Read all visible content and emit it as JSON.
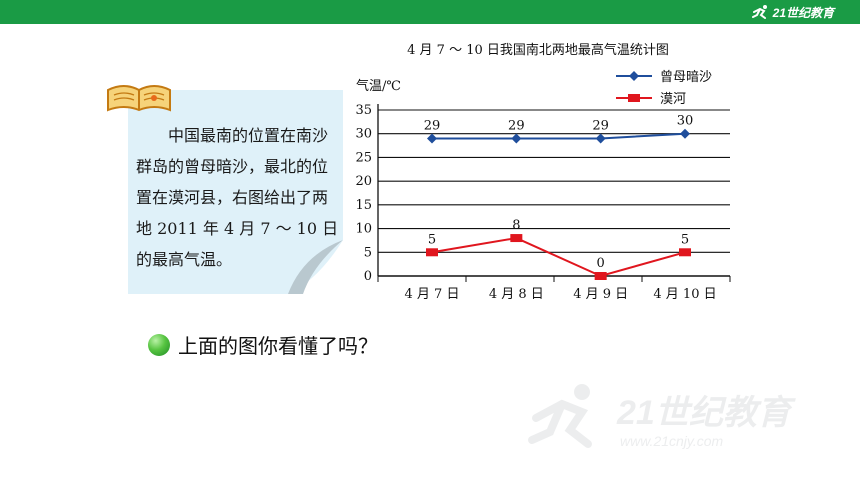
{
  "header": {
    "logo_text": "21世纪教育",
    "bar_color": "#1a9b45"
  },
  "note": {
    "text": "中国最南的位置在南沙群岛的曾母暗沙，最北的位置在漠河县，右图给出了两地 2011 年 4 月 7 ～ 10 日的最高气温。"
  },
  "question": {
    "text": "上面的图你看懂了吗？"
  },
  "chart_data": {
    "type": "line",
    "title": "4 月 7 ～ 10 日我国南北两地最高气温统计图",
    "ylabel": "气温/℃",
    "xlabel": "",
    "categories": [
      "4 月 7 日",
      "4 月 8 日",
      "4 月 9 日",
      "4 月 10 日"
    ],
    "ylim": [
      0,
      35
    ],
    "yticks": [
      0,
      5,
      10,
      15,
      20,
      25,
      30,
      35
    ],
    "grid": true,
    "legend_position": "top-right",
    "series": [
      {
        "name": "曾母暗沙",
        "values": [
          29,
          29,
          29,
          30
        ],
        "color": "#1f4e9c",
        "marker": "diamond"
      },
      {
        "name": "漠河",
        "values": [
          5,
          8,
          0,
          5
        ],
        "color": "#e0161e",
        "marker": "square"
      }
    ]
  },
  "watermark": {
    "text": "21世纪教育",
    "subtext": "www.21cnjy.com"
  }
}
